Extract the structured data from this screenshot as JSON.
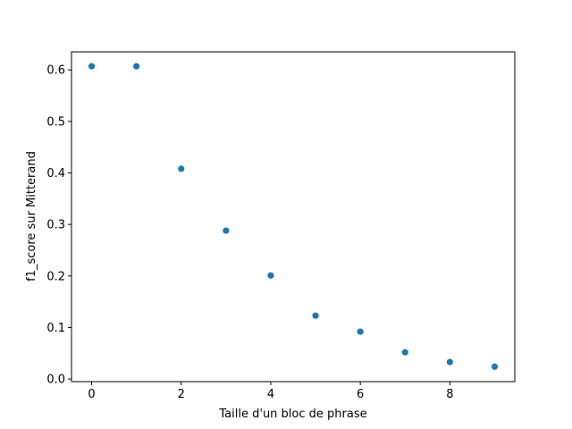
{
  "chart_data": {
    "type": "scatter",
    "xlabel": "Taille d'un bloc de phrase",
    "ylabel": "f1_score sur Mitterand",
    "x": [
      0,
      1,
      2,
      3,
      4,
      5,
      6,
      7,
      8,
      9
    ],
    "y": [
      0.607,
      0.607,
      0.408,
      0.288,
      0.201,
      0.123,
      0.092,
      0.052,
      0.033,
      0.024
    ],
    "xlim": [
      -0.45,
      9.45
    ],
    "ylim": [
      -0.005,
      0.635
    ],
    "xticks": [
      0,
      2,
      4,
      6,
      8
    ],
    "xtick_labels": [
      "0",
      "2",
      "4",
      "6",
      "8"
    ],
    "yticks": [
      0.0,
      0.1,
      0.2,
      0.3,
      0.4,
      0.5,
      0.6
    ],
    "ytick_labels": [
      "0.0",
      "0.1",
      "0.2",
      "0.3",
      "0.4",
      "0.5",
      "0.6"
    ],
    "grid": false,
    "marker_color": "#1f77b4"
  }
}
